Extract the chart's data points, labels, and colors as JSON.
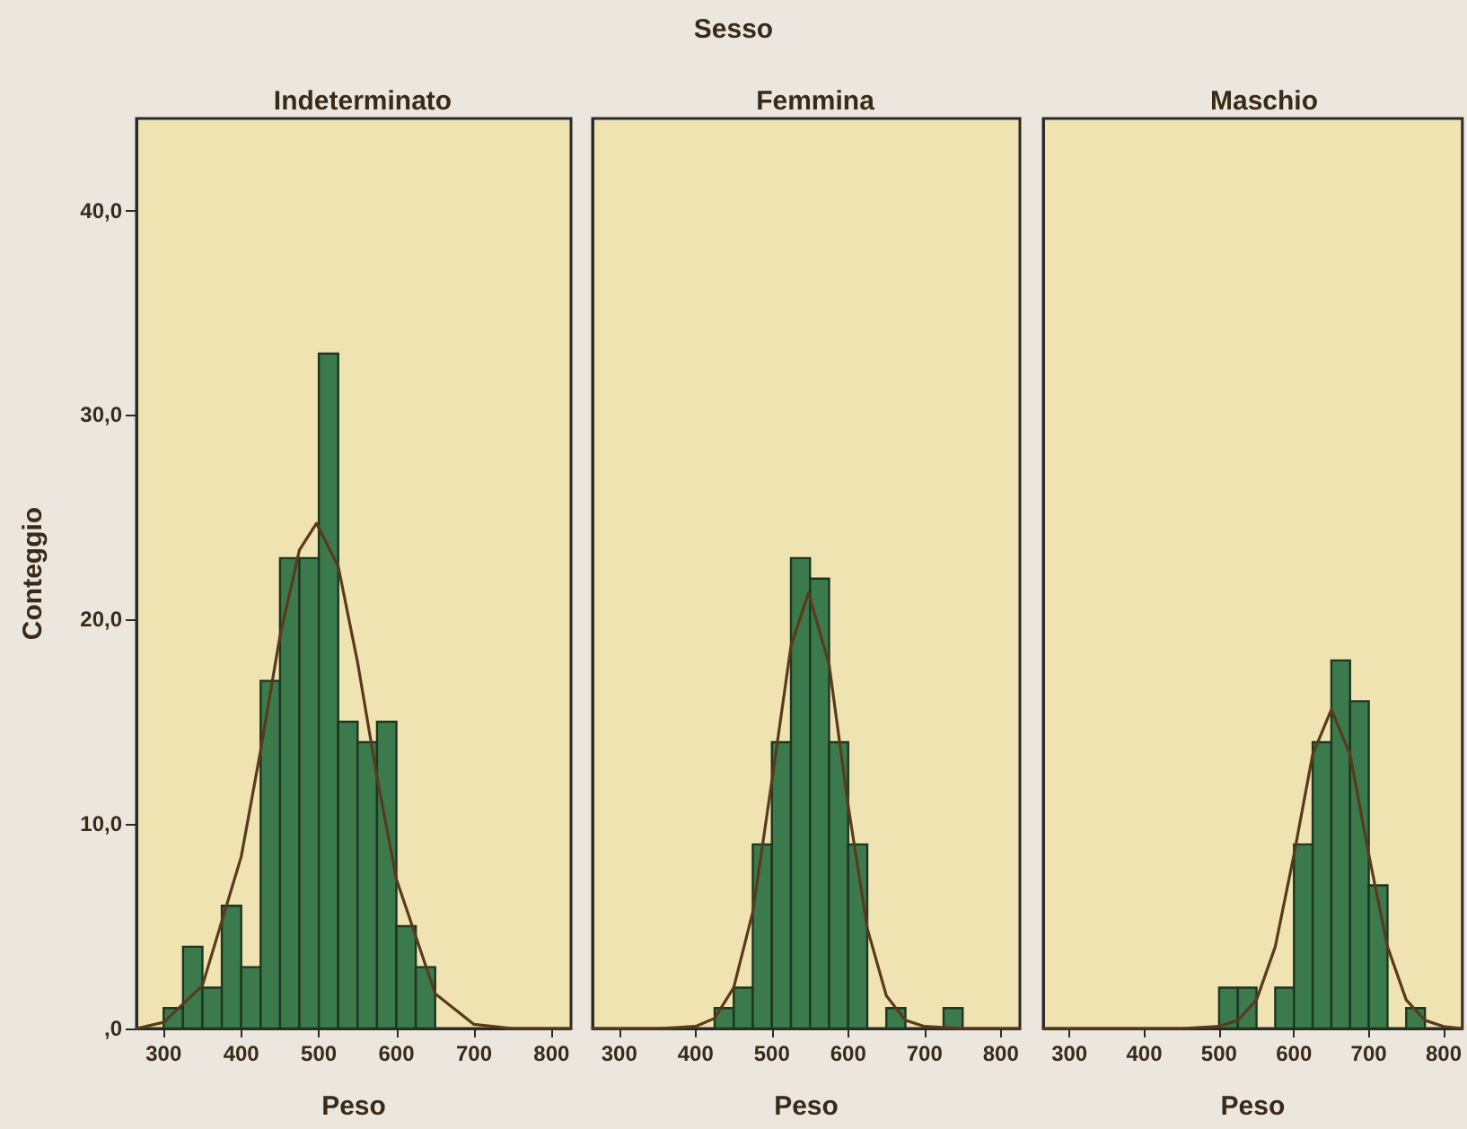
{
  "chart_data": [
    {
      "type": "histogram",
      "title": "Indeterminato",
      "xlabel": "Peso",
      "ylabel": "Conteggio",
      "annotations": [
        "Sesso"
      ],
      "bins": [
        300,
        325,
        350,
        375,
        400,
        425,
        450,
        475,
        500,
        525,
        550,
        575,
        600,
        625,
        650
      ],
      "values": [
        1,
        4,
        2,
        6,
        3,
        17,
        23,
        23,
        33,
        15,
        14,
        15,
        5,
        3
      ],
      "color": "#3b7a4c",
      "series": [
        {
          "type": "line",
          "color": "#5a3a1c",
          "x": [
            265,
            300,
            350,
            400,
            425,
            450,
            475,
            497,
            525,
            550,
            575,
            600,
            650,
            700,
            750,
            825
          ],
          "values": [
            0,
            0.3,
            2.1,
            8.4,
            13.6,
            19.2,
            23.4,
            24.7,
            22.6,
            17.9,
            12.3,
            7.3,
            1.7,
            0.2,
            0,
            0
          ]
        }
      ],
      "marker": "none",
      "grid": false,
      "xlim": [
        265,
        825
      ],
      "xticks": [
        300,
        400,
        500,
        600,
        700,
        800
      ],
      "ylim": [
        0,
        44.5
      ],
      "yticks": [
        {
          "value": 0,
          "label": ",0"
        },
        {
          "value": 10,
          "label": "10,0"
        },
        {
          "value": 20,
          "label": "20,0"
        },
        {
          "value": 30,
          "label": "30,0"
        },
        {
          "value": 40,
          "label": "40,0"
        }
      ]
    },
    {
      "type": "histogram",
      "title": "Femmina",
      "xlabel": "Peso",
      "bins": [
        425,
        450,
        475,
        500,
        525,
        550,
        575,
        600,
        625,
        650,
        675,
        700,
        725,
        750
      ],
      "values": [
        1,
        2,
        9,
        14,
        23,
        22,
        14,
        9,
        0,
        1,
        0,
        0,
        1
      ],
      "color": "#3b7a4c",
      "series": [
        {
          "type": "line",
          "color": "#5a3a1c",
          "x": [
            265,
            350,
            400,
            425,
            450,
            475,
            500,
            525,
            548,
            575,
            600,
            625,
            650,
            675,
            700,
            750,
            825
          ],
          "values": [
            0,
            0,
            0.1,
            0.5,
            2.0,
            5.7,
            12.1,
            18.7,
            21.3,
            17.8,
            10.9,
            4.9,
            1.6,
            0.4,
            0.1,
            0,
            0
          ]
        }
      ],
      "marker": "none",
      "grid": false,
      "tick_labels": "x",
      "xlim": [
        265,
        825
      ],
      "xticks": [
        300,
        400,
        500,
        600,
        700,
        800
      ],
      "ylim": [
        0,
        44.5
      ]
    },
    {
      "type": "histogram",
      "title": "Maschio",
      "xlabel": "Peso",
      "bins": [
        500,
        525,
        550,
        575,
        600,
        625,
        650,
        675,
        700,
        725,
        750,
        775
      ],
      "values": [
        2,
        2,
        0,
        2,
        9,
        14,
        18,
        16,
        7,
        0,
        1
      ],
      "color": "#3b7a4c",
      "series": [
        {
          "type": "line",
          "color": "#5a3a1c",
          "x": [
            265,
            450,
            500,
            525,
            550,
            575,
            600,
            625,
            650,
            675,
            700,
            725,
            750,
            775,
            800,
            825
          ],
          "values": [
            0,
            0,
            0.1,
            0.4,
            1.4,
            4.0,
            8.5,
            13.4,
            15.6,
            13.4,
            8.5,
            4.0,
            1.4,
            0.4,
            0.1,
            0
          ]
        }
      ],
      "marker": "none",
      "grid": false,
      "tick_labels": "x",
      "xlim": [
        265,
        825
      ],
      "xticks": [
        300,
        400,
        500,
        600,
        700,
        800
      ],
      "ylim": [
        0,
        44.5
      ]
    }
  ]
}
